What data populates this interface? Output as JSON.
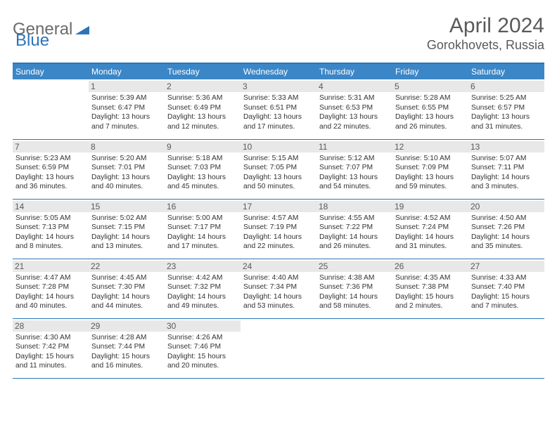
{
  "logo": {
    "gray": "General",
    "blue": "Blue"
  },
  "title": "April 2024",
  "location": "Gorokhovets, Russia",
  "colors": {
    "header_bg": "#3b86c7",
    "border": "#2d74b8",
    "daynum_bg": "#e8e8e8",
    "text_gray": "#5a5a5a"
  },
  "day_names": [
    "Sunday",
    "Monday",
    "Tuesday",
    "Wednesday",
    "Thursday",
    "Friday",
    "Saturday"
  ],
  "weeks": [
    [
      null,
      {
        "d": "1",
        "sr": "Sunrise: 5:39 AM",
        "ss": "Sunset: 6:47 PM",
        "dl1": "Daylight: 13 hours",
        "dl2": "and 7 minutes."
      },
      {
        "d": "2",
        "sr": "Sunrise: 5:36 AM",
        "ss": "Sunset: 6:49 PM",
        "dl1": "Daylight: 13 hours",
        "dl2": "and 12 minutes."
      },
      {
        "d": "3",
        "sr": "Sunrise: 5:33 AM",
        "ss": "Sunset: 6:51 PM",
        "dl1": "Daylight: 13 hours",
        "dl2": "and 17 minutes."
      },
      {
        "d": "4",
        "sr": "Sunrise: 5:31 AM",
        "ss": "Sunset: 6:53 PM",
        "dl1": "Daylight: 13 hours",
        "dl2": "and 22 minutes."
      },
      {
        "d": "5",
        "sr": "Sunrise: 5:28 AM",
        "ss": "Sunset: 6:55 PM",
        "dl1": "Daylight: 13 hours",
        "dl2": "and 26 minutes."
      },
      {
        "d": "6",
        "sr": "Sunrise: 5:25 AM",
        "ss": "Sunset: 6:57 PM",
        "dl1": "Daylight: 13 hours",
        "dl2": "and 31 minutes."
      }
    ],
    [
      {
        "d": "7",
        "sr": "Sunrise: 5:23 AM",
        "ss": "Sunset: 6:59 PM",
        "dl1": "Daylight: 13 hours",
        "dl2": "and 36 minutes."
      },
      {
        "d": "8",
        "sr": "Sunrise: 5:20 AM",
        "ss": "Sunset: 7:01 PM",
        "dl1": "Daylight: 13 hours",
        "dl2": "and 40 minutes."
      },
      {
        "d": "9",
        "sr": "Sunrise: 5:18 AM",
        "ss": "Sunset: 7:03 PM",
        "dl1": "Daylight: 13 hours",
        "dl2": "and 45 minutes."
      },
      {
        "d": "10",
        "sr": "Sunrise: 5:15 AM",
        "ss": "Sunset: 7:05 PM",
        "dl1": "Daylight: 13 hours",
        "dl2": "and 50 minutes."
      },
      {
        "d": "11",
        "sr": "Sunrise: 5:12 AM",
        "ss": "Sunset: 7:07 PM",
        "dl1": "Daylight: 13 hours",
        "dl2": "and 54 minutes."
      },
      {
        "d": "12",
        "sr": "Sunrise: 5:10 AM",
        "ss": "Sunset: 7:09 PM",
        "dl1": "Daylight: 13 hours",
        "dl2": "and 59 minutes."
      },
      {
        "d": "13",
        "sr": "Sunrise: 5:07 AM",
        "ss": "Sunset: 7:11 PM",
        "dl1": "Daylight: 14 hours",
        "dl2": "and 3 minutes."
      }
    ],
    [
      {
        "d": "14",
        "sr": "Sunrise: 5:05 AM",
        "ss": "Sunset: 7:13 PM",
        "dl1": "Daylight: 14 hours",
        "dl2": "and 8 minutes."
      },
      {
        "d": "15",
        "sr": "Sunrise: 5:02 AM",
        "ss": "Sunset: 7:15 PM",
        "dl1": "Daylight: 14 hours",
        "dl2": "and 13 minutes."
      },
      {
        "d": "16",
        "sr": "Sunrise: 5:00 AM",
        "ss": "Sunset: 7:17 PM",
        "dl1": "Daylight: 14 hours",
        "dl2": "and 17 minutes."
      },
      {
        "d": "17",
        "sr": "Sunrise: 4:57 AM",
        "ss": "Sunset: 7:19 PM",
        "dl1": "Daylight: 14 hours",
        "dl2": "and 22 minutes."
      },
      {
        "d": "18",
        "sr": "Sunrise: 4:55 AM",
        "ss": "Sunset: 7:22 PM",
        "dl1": "Daylight: 14 hours",
        "dl2": "and 26 minutes."
      },
      {
        "d": "19",
        "sr": "Sunrise: 4:52 AM",
        "ss": "Sunset: 7:24 PM",
        "dl1": "Daylight: 14 hours",
        "dl2": "and 31 minutes."
      },
      {
        "d": "20",
        "sr": "Sunrise: 4:50 AM",
        "ss": "Sunset: 7:26 PM",
        "dl1": "Daylight: 14 hours",
        "dl2": "and 35 minutes."
      }
    ],
    [
      {
        "d": "21",
        "sr": "Sunrise: 4:47 AM",
        "ss": "Sunset: 7:28 PM",
        "dl1": "Daylight: 14 hours",
        "dl2": "and 40 minutes."
      },
      {
        "d": "22",
        "sr": "Sunrise: 4:45 AM",
        "ss": "Sunset: 7:30 PM",
        "dl1": "Daylight: 14 hours",
        "dl2": "and 44 minutes."
      },
      {
        "d": "23",
        "sr": "Sunrise: 4:42 AM",
        "ss": "Sunset: 7:32 PM",
        "dl1": "Daylight: 14 hours",
        "dl2": "and 49 minutes."
      },
      {
        "d": "24",
        "sr": "Sunrise: 4:40 AM",
        "ss": "Sunset: 7:34 PM",
        "dl1": "Daylight: 14 hours",
        "dl2": "and 53 minutes."
      },
      {
        "d": "25",
        "sr": "Sunrise: 4:38 AM",
        "ss": "Sunset: 7:36 PM",
        "dl1": "Daylight: 14 hours",
        "dl2": "and 58 minutes."
      },
      {
        "d": "26",
        "sr": "Sunrise: 4:35 AM",
        "ss": "Sunset: 7:38 PM",
        "dl1": "Daylight: 15 hours",
        "dl2": "and 2 minutes."
      },
      {
        "d": "27",
        "sr": "Sunrise: 4:33 AM",
        "ss": "Sunset: 7:40 PM",
        "dl1": "Daylight: 15 hours",
        "dl2": "and 7 minutes."
      }
    ],
    [
      {
        "d": "28",
        "sr": "Sunrise: 4:30 AM",
        "ss": "Sunset: 7:42 PM",
        "dl1": "Daylight: 15 hours",
        "dl2": "and 11 minutes."
      },
      {
        "d": "29",
        "sr": "Sunrise: 4:28 AM",
        "ss": "Sunset: 7:44 PM",
        "dl1": "Daylight: 15 hours",
        "dl2": "and 16 minutes."
      },
      {
        "d": "30",
        "sr": "Sunrise: 4:26 AM",
        "ss": "Sunset: 7:46 PM",
        "dl1": "Daylight: 15 hours",
        "dl2": "and 20 minutes."
      },
      null,
      null,
      null,
      null
    ]
  ]
}
